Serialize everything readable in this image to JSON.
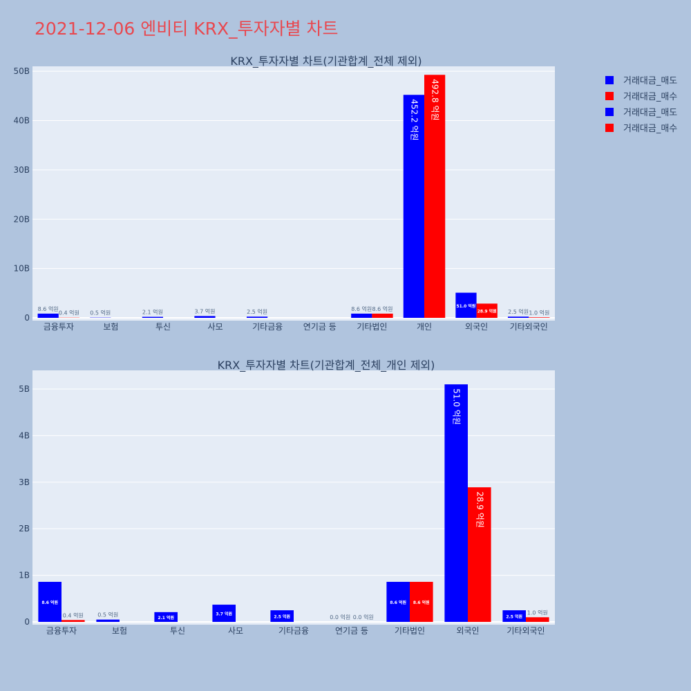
{
  "title": "2021-12-06 엔비티 KRX_투자자별 차트",
  "colors": {
    "sell": "#0000ff",
    "buy": "#ff0000",
    "plot_bg": "#e5ecf6",
    "page_bg": "#b0c4de",
    "title": "#e8484f"
  },
  "legend": [
    {
      "label": "거래대금_매도",
      "color": "#0000ff"
    },
    {
      "label": "거래대금_매수",
      "color": "#ff0000"
    },
    {
      "label": "거래대금_매도",
      "color": "#0000ff"
    },
    {
      "label": "거래대금_매수",
      "color": "#ff0000"
    }
  ],
  "chart_data": [
    {
      "type": "bar",
      "title": "KRX_투자자별 차트(기관합계_전체 제외)",
      "categories": [
        "금융투자",
        "보험",
        "투신",
        "사모",
        "기타금융",
        "연기금 등",
        "기타법인",
        "개인",
        "외국인",
        "기타외국인"
      ],
      "ylim": [
        0,
        51
      ],
      "yticks": [
        0,
        10,
        20,
        30,
        40,
        50
      ],
      "ytick_labels": [
        "0",
        "10B",
        "20B",
        "30B",
        "40B",
        "50B"
      ],
      "grid": true,
      "legend_position": "right",
      "series": [
        {
          "name": "거래대금_매도",
          "color": "#0000ff",
          "values": [
            0.86,
            0.05,
            0.21,
            0.37,
            0.25,
            null,
            0.86,
            45.22,
            5.1,
            0.25
          ],
          "labels": [
            "8.6 억원",
            "0.5 억원",
            "2.1 억원",
            "3.7 억원",
            "2.5 억원",
            "",
            "8.6 억원",
            "452.2 억원",
            "51.0 억원",
            "2.5 억원"
          ]
        },
        {
          "name": "거래대금_매수",
          "color": "#ff0000",
          "values": [
            0.04,
            null,
            null,
            null,
            null,
            null,
            0.86,
            49.28,
            2.89,
            0.1
          ],
          "labels": [
            "0.4 억원",
            "",
            "",
            "",
            "",
            "",
            "8.6 억원",
            "492.8 억원",
            "28.9 억원",
            "1.0 억원"
          ]
        }
      ]
    },
    {
      "type": "bar",
      "title": "KRX_투자자별 차트(기관합계_전체_개인 제외)",
      "categories": [
        "금융투자",
        "보험",
        "투신",
        "사모",
        "기타금융",
        "연기금 등",
        "기타법인",
        "외국인",
        "기타외국인"
      ],
      "ylim": [
        0,
        5.4
      ],
      "yticks": [
        0,
        1,
        2,
        3,
        4,
        5
      ],
      "ytick_labels": [
        "0",
        "1B",
        "2B",
        "3B",
        "4B",
        "5B"
      ],
      "grid": true,
      "series": [
        {
          "name": "거래대금_매도",
          "color": "#0000ff",
          "values": [
            0.86,
            0.05,
            0.21,
            0.37,
            0.25,
            0.0,
            0.86,
            5.1,
            0.25
          ],
          "labels": [
            "8.6 억원",
            "0.5 억원",
            "2.1 억원",
            "3.7 억원",
            "2.5 억원",
            "0.0 억원",
            "8.6 억원",
            "51.0 억원",
            "2.5 억원"
          ]
        },
        {
          "name": "거래대금_매수",
          "color": "#ff0000",
          "values": [
            0.04,
            null,
            null,
            null,
            null,
            0.0,
            0.86,
            2.89,
            0.1
          ],
          "labels": [
            "0.4 억원",
            "",
            "",
            "",
            "",
            "0.0 억원",
            "8.6 억원",
            "28.9 억원",
            "1.0 억원"
          ]
        }
      ]
    }
  ]
}
